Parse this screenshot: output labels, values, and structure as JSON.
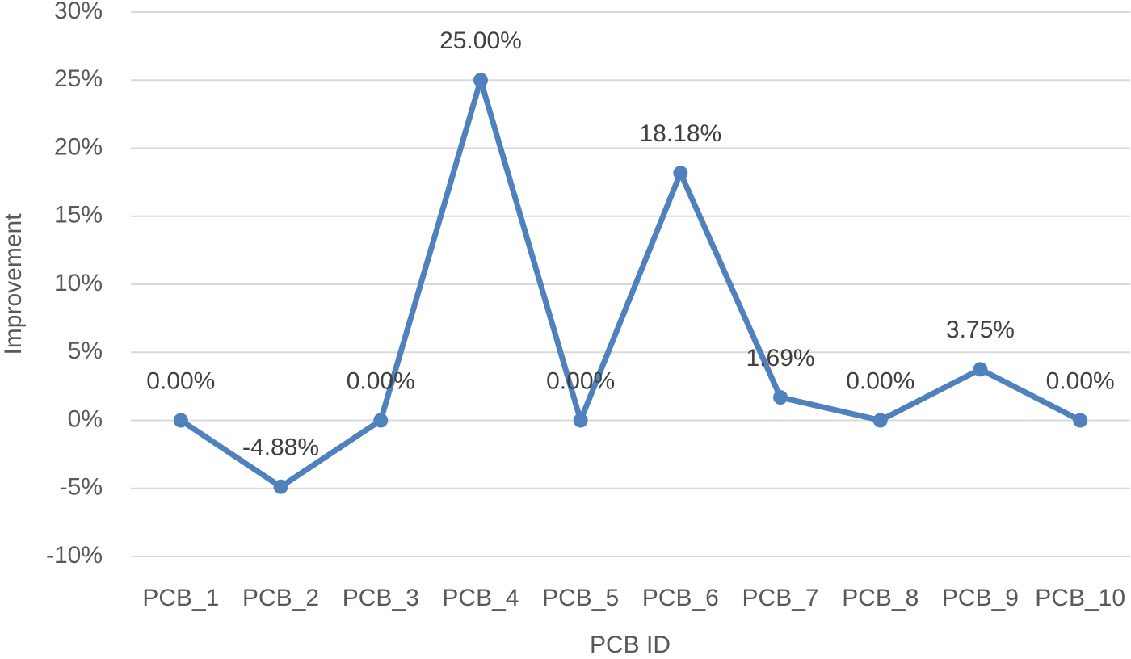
{
  "chart_data": {
    "type": "line",
    "x_label": "PCB ID",
    "y_label": "Improvement",
    "categories": [
      "PCB_1",
      "PCB_2",
      "PCB_3",
      "PCB_4",
      "PCB_5",
      "PCB_6",
      "PCB_7",
      "PCB_8",
      "PCB_9",
      "PCB_10"
    ],
    "values": [
      0,
      -4.88,
      0,
      25,
      0,
      18.18,
      1.69,
      0,
      3.75,
      0
    ],
    "value_labels": [
      "0.00%",
      "-4.88%",
      "0.00%",
      "25.00%",
      "0.00%",
      "18.18%",
      "1.69%",
      "0.00%",
      "3.75%",
      "0.00%"
    ],
    "color": "#4f81bd",
    "ylim": [
      -10,
      30
    ],
    "yticks": [
      {
        "value": -10,
        "label": "-10%"
      },
      {
        "value": -5,
        "label": "-5%"
      },
      {
        "value": 0,
        "label": "0%"
      },
      {
        "value": 5,
        "label": "5%"
      },
      {
        "value": 10,
        "label": "10%"
      },
      {
        "value": 15,
        "label": "15%"
      },
      {
        "value": 20,
        "label": "20%"
      },
      {
        "value": 25,
        "label": "25%"
      },
      {
        "value": 30,
        "label": "30%"
      }
    ],
    "grid": true
  }
}
